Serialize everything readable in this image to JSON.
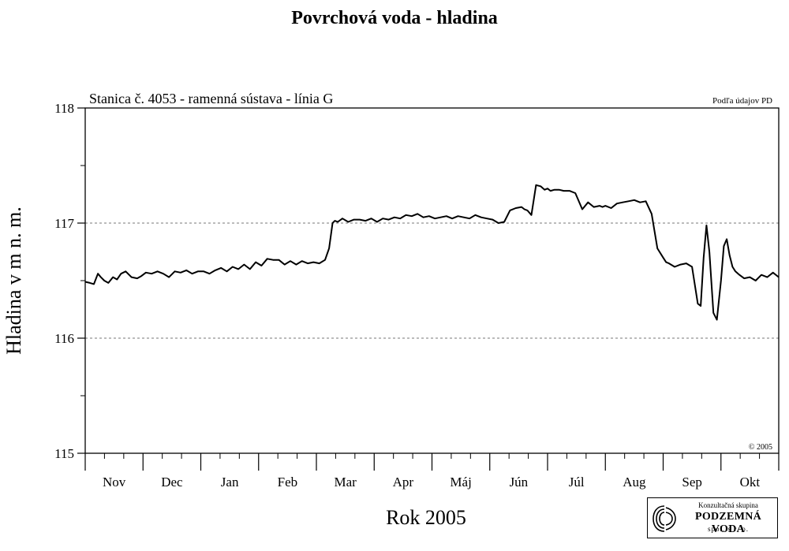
{
  "chart_data": {
    "type": "line",
    "title": "Povrchová voda - hladina",
    "subtitle": "Stanica č. 4053 - ramenná sústava - línia G",
    "source_note": "Podľa údajov PD",
    "copyright": "© 2005",
    "xlabel": "Rok 2005",
    "ylabel": "Hladina v m n. m.",
    "ylim": [
      115,
      118
    ],
    "xlim": [
      0,
      12
    ],
    "y_ticks": [
      115,
      116,
      117,
      118
    ],
    "y_tick_labels": [
      "115",
      "116",
      "117",
      "118"
    ],
    "gridlines_y": [
      116,
      117
    ],
    "months": [
      "Nov",
      "Dec",
      "Jan",
      "Feb",
      "Mar",
      "Apr",
      "Máj",
      "Jún",
      "Júl",
      "Aug",
      "Sep",
      "Okt"
    ],
    "series": [
      {
        "x": [
          0.0,
          0.08,
          0.15,
          0.22,
          0.27,
          0.33,
          0.4,
          0.48,
          0.55,
          0.62,
          0.7,
          0.8,
          0.9,
          0.97,
          1.05,
          1.15,
          1.25,
          1.35,
          1.45,
          1.55,
          1.65,
          1.75,
          1.85,
          1.95,
          2.05,
          2.15,
          2.25,
          2.35,
          2.45,
          2.55,
          2.65,
          2.75,
          2.85,
          2.95,
          3.05,
          3.15,
          3.25,
          3.35,
          3.45,
          3.55,
          3.65,
          3.75,
          3.85,
          3.95,
          4.05,
          4.15,
          4.22,
          4.28,
          4.32,
          4.37,
          4.45,
          4.55,
          4.65,
          4.75,
          4.85,
          4.95,
          5.05,
          5.15,
          5.25,
          5.35,
          5.45,
          5.55,
          5.65,
          5.75,
          5.85,
          5.95,
          6.05,
          6.15,
          6.25,
          6.35,
          6.45,
          6.55,
          6.65,
          6.75,
          6.85,
          6.95,
          7.05,
          7.15,
          7.25,
          7.35,
          7.45,
          7.55,
          7.6,
          7.65,
          7.72,
          7.8,
          7.88,
          7.95,
          8.0,
          8.05,
          8.12,
          8.2,
          8.28,
          8.38,
          8.48,
          8.6,
          8.7,
          8.8,
          8.9,
          8.95,
          9.0,
          9.1,
          9.2,
          9.3,
          9.4,
          9.5,
          9.6,
          9.7,
          9.8,
          9.9,
          10.0,
          10.05,
          10.1,
          10.2,
          10.3,
          10.4,
          10.5,
          10.6,
          10.65,
          10.7,
          10.75,
          10.8,
          10.87,
          10.93,
          11.0,
          11.05,
          11.1,
          11.15,
          11.2,
          11.25,
          11.32,
          11.4,
          11.5,
          11.6,
          11.7,
          11.8,
          11.9,
          12.0
        ],
        "y": [
          116.49,
          116.48,
          116.47,
          116.56,
          116.53,
          116.5,
          116.48,
          116.53,
          116.51,
          116.56,
          116.58,
          116.53,
          116.52,
          116.54,
          116.57,
          116.56,
          116.58,
          116.56,
          116.53,
          116.58,
          116.57,
          116.59,
          116.56,
          116.58,
          116.58,
          116.56,
          116.59,
          116.61,
          116.58,
          116.62,
          116.6,
          116.64,
          116.6,
          116.66,
          116.63,
          116.69,
          116.68,
          116.68,
          116.64,
          116.67,
          116.64,
          116.67,
          116.65,
          116.66,
          116.65,
          116.68,
          116.78,
          117.0,
          117.02,
          117.01,
          117.04,
          117.01,
          117.03,
          117.03,
          117.02,
          117.04,
          117.01,
          117.04,
          117.03,
          117.05,
          117.04,
          117.07,
          117.06,
          117.08,
          117.05,
          117.06,
          117.04,
          117.05,
          117.06,
          117.04,
          117.06,
          117.05,
          117.04,
          117.07,
          117.05,
          117.04,
          117.03,
          117.0,
          117.01,
          117.11,
          117.13,
          117.14,
          117.12,
          117.11,
          117.07,
          117.33,
          117.32,
          117.29,
          117.3,
          117.28,
          117.29,
          117.29,
          117.28,
          117.28,
          117.26,
          117.12,
          117.18,
          117.14,
          117.15,
          117.14,
          117.15,
          117.13,
          117.17,
          117.18,
          117.19,
          117.2,
          117.18,
          117.19,
          117.08,
          116.78,
          116.7,
          116.66,
          116.65,
          116.62,
          116.64,
          116.65,
          116.62,
          116.3,
          116.28,
          116.7,
          116.98,
          116.75,
          116.22,
          116.16,
          116.5,
          116.8,
          116.86,
          116.72,
          116.62,
          116.58,
          116.55,
          116.52,
          116.53,
          116.5,
          116.55,
          116.53,
          116.57,
          116.53
        ]
      }
    ]
  },
  "logo": {
    "line1": "Konzultačná skupina",
    "line2": "PODZEMNÁ VODA",
    "line3": "spol. s r. o."
  }
}
